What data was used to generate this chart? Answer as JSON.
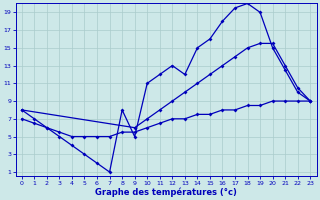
{
  "xlabel": "Graphe des températures (°c)",
  "bg_color": "#cde8e8",
  "line_color": "#0000bb",
  "grid_color": "#aacccc",
  "xlim": [
    -0.5,
    23.5
  ],
  "ylim": [
    0.5,
    20
  ],
  "xticks": [
    0,
    1,
    2,
    3,
    4,
    5,
    6,
    7,
    8,
    9,
    10,
    11,
    12,
    13,
    14,
    15,
    16,
    17,
    18,
    19,
    20,
    21,
    22,
    23
  ],
  "yticks": [
    1,
    3,
    5,
    7,
    9,
    11,
    13,
    15,
    17,
    19
  ],
  "line1": {
    "x": [
      0,
      1,
      2,
      3,
      4,
      5,
      6,
      7,
      8,
      9,
      10,
      11,
      12,
      13,
      14,
      15,
      16,
      17,
      18,
      19,
      20,
      21,
      22,
      23
    ],
    "y": [
      8,
      7,
      6,
      5,
      4,
      3,
      2,
      1,
      8,
      5,
      11,
      12,
      13,
      12,
      15,
      16,
      18,
      19.5,
      20,
      19,
      15,
      12.5,
      10,
      9
    ]
  },
  "line2": {
    "x": [
      0,
      9,
      10,
      11,
      12,
      13,
      14,
      15,
      16,
      17,
      18,
      19,
      20,
      21,
      22,
      23
    ],
    "y": [
      8,
      6,
      7,
      8,
      9,
      10,
      11,
      12,
      13,
      14,
      15,
      15.5,
      15.5,
      13,
      10.5,
      9
    ]
  },
  "line3": {
    "x": [
      0,
      1,
      2,
      3,
      4,
      5,
      6,
      7,
      8,
      9,
      10,
      11,
      12,
      13,
      14,
      15,
      16,
      17,
      18,
      19,
      20,
      21,
      22,
      23
    ],
    "y": [
      7,
      6.5,
      6,
      5.5,
      5,
      5,
      5,
      5,
      5.5,
      5.5,
      6,
      6.5,
      7,
      7,
      7.5,
      7.5,
      8,
      8,
      8.5,
      8.5,
      9,
      9,
      9,
      9
    ]
  }
}
